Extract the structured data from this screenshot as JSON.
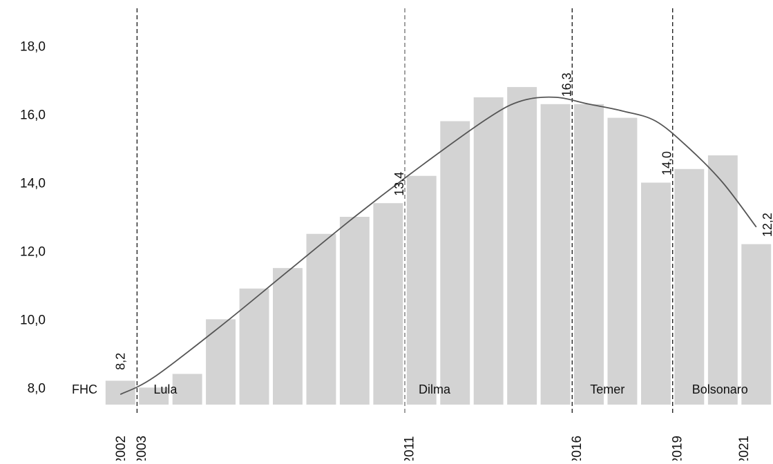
{
  "chart_data": {
    "type": "bar",
    "title": "",
    "xlabel": "",
    "ylabel": "",
    "ylim": [
      7.5,
      18.5
    ],
    "yticks": [
      "8,0",
      "10,0",
      "12,0",
      "14,0",
      "16,0",
      "18,0"
    ],
    "ytick_values": [
      8,
      10,
      12,
      14,
      16,
      18
    ],
    "categories": [
      "2002",
      "2003",
      "2004",
      "2005",
      "2006",
      "2007",
      "2008",
      "2009",
      "2010",
      "2011",
      "2012",
      "2013",
      "2014",
      "2015",
      "2016",
      "2017",
      "2018",
      "2019",
      "2020",
      "2021"
    ],
    "values": [
      8.2,
      8.0,
      8.4,
      10.0,
      10.9,
      11.5,
      12.5,
      13.0,
      13.4,
      14.2,
      15.8,
      16.5,
      16.8,
      16.3,
      16.3,
      15.9,
      14.0,
      14.4,
      14.8,
      12.2
    ],
    "x_tick_labels": [
      {
        "category": "2002",
        "label": "2002"
      },
      {
        "category": "2003",
        "label": "2003"
      },
      {
        "category": "2011",
        "label": "2011"
      },
      {
        "category": "2016",
        "label": "2016"
      },
      {
        "category": "2019",
        "label": "2019"
      },
      {
        "category": "2021",
        "label": "2021"
      }
    ],
    "data_labels": [
      {
        "category": "2002",
        "label": "8,2"
      },
      {
        "category": "2010",
        "label": "13,4"
      },
      {
        "category": "2015",
        "label": "16,3"
      },
      {
        "category": "2018",
        "label": "14,0"
      },
      {
        "category": "2021",
        "label": "12,2"
      }
    ],
    "periods": [
      {
        "label": "FHC",
        "from": "2002",
        "to": "2002"
      },
      {
        "label": "Lula",
        "from": "2003",
        "to": "2010"
      },
      {
        "label": "Dilma",
        "from": "2011",
        "to": "2015"
      },
      {
        "label": "Temer",
        "from": "2016",
        "to": "2018"
      },
      {
        "label": "Bolsonaro",
        "from": "2019",
        "to": "2021"
      }
    ],
    "dividers": [
      {
        "between": [
          "2002",
          "2003"
        ],
        "style": "dashed"
      },
      {
        "between": [
          "2010",
          "2011"
        ],
        "style": "dashed-gray"
      },
      {
        "between": [
          "2015",
          "2016"
        ],
        "style": "dashed"
      },
      {
        "between": [
          "2018",
          "2019"
        ],
        "style": "dashed"
      }
    ],
    "trendline": {
      "type": "smooth",
      "x": [
        "2002",
        "2003",
        "2005",
        "2007",
        "2009",
        "2011",
        "2013",
        "2014",
        "2015",
        "2016",
        "2017",
        "2018",
        "2019",
        "2020",
        "2021"
      ],
      "y": [
        7.8,
        8.3,
        9.8,
        11.4,
        13.0,
        14.5,
        15.9,
        16.4,
        16.5,
        16.3,
        16.1,
        15.8,
        15.0,
        14.0,
        12.7
      ]
    },
    "grid": false,
    "legend": "none",
    "colors": {
      "bar": "#d3d3d3",
      "trendline": "#555555",
      "divider": "#222222",
      "divider_gray": "#777777",
      "text": "#111111"
    }
  }
}
